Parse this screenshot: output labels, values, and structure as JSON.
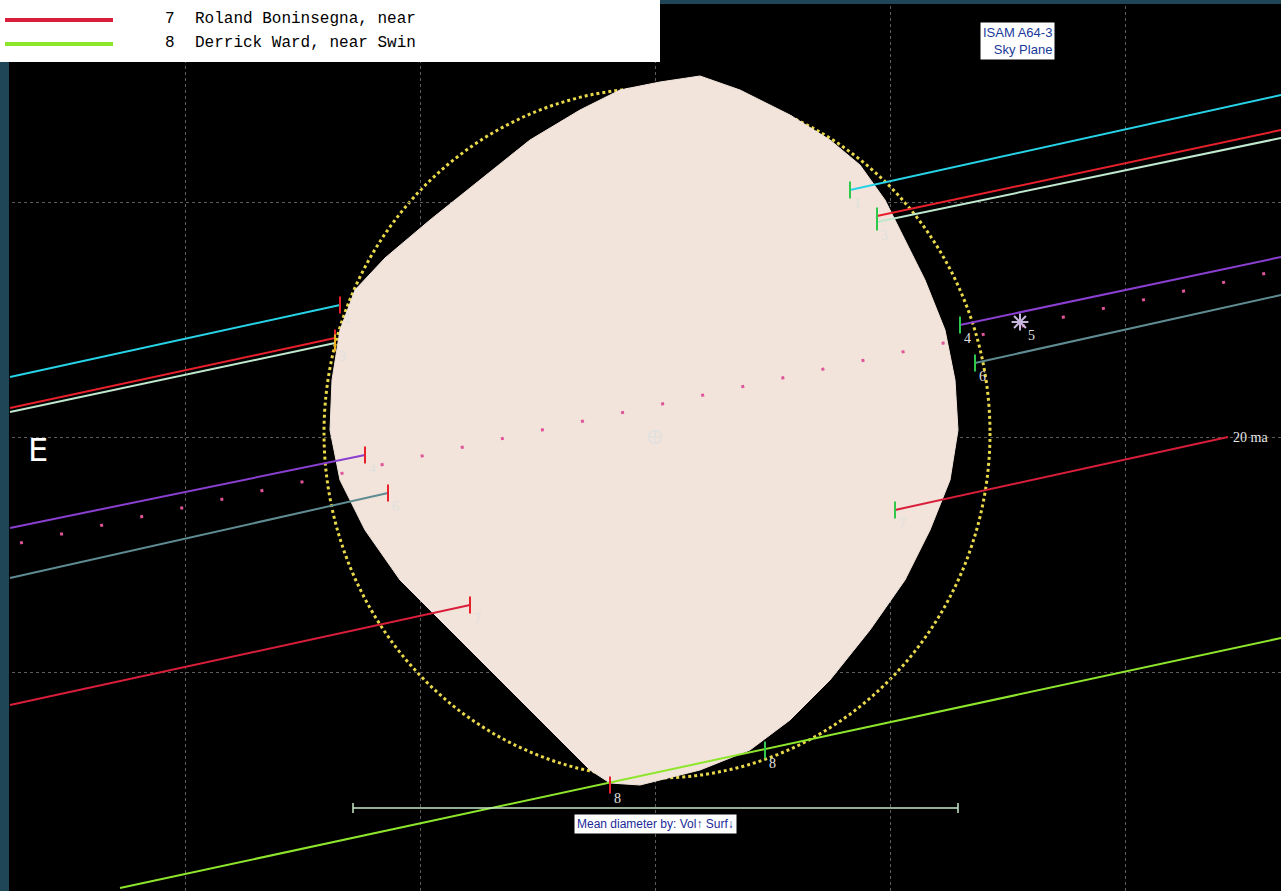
{
  "chart_data": {
    "type": "scatter",
    "xlim": [
      -65.5,
      62.6
    ],
    "ylim": [
      -45.4,
      43.7
    ],
    "xticks": [
      -47,
      -23.5,
      0,
      23.5,
      47
    ],
    "yticks": [
      -23.5,
      0,
      23.5
    ],
    "grid": true,
    "tick_labels": false,
    "legend": "top-left",
    "title_box": [
      "ISAM A64-3",
      "Sky Plane"
    ],
    "direction_label": "E",
    "annotations": [
      {
        "text": "20 ma",
        "x": 57.5,
        "y": 0.0
      }
    ],
    "center": {
      "x": 0,
      "y": 0
    },
    "profile": {
      "color": "#f2e4da",
      "x": [
        0.5,
        4.5,
        8.5,
        13.5,
        17.5,
        20.5,
        23.0,
        25.0,
        27.0,
        29.0,
        30.0,
        30.3,
        29.5,
        27.5,
        25.0,
        21.5,
        17.5,
        13.5,
        9.5,
        4.5,
        -1.5,
        -4.5,
        -6.5,
        -9.5,
        -13.5,
        -17.5,
        -21.5,
        -25.5,
        -29.0,
        -31.5,
        -32.5,
        -32.3,
        -31.5,
        -30.0,
        -27.0,
        -22.5,
        -17.5,
        -12.5,
        -7.5,
        -3.5
      ],
      "y": [
        35.5,
        36.1,
        34.7,
        32.2,
        29.7,
        27.2,
        23.7,
        19.7,
        15.7,
        10.7,
        5.7,
        0.7,
        -4.3,
        -9.3,
        -14.3,
        -19.3,
        -24.3,
        -28.3,
        -31.3,
        -33.3,
        -34.8,
        -34.6,
        -33.3,
        -30.3,
        -26.3,
        -22.3,
        -18.3,
        -14.3,
        -9.3,
        -4.3,
        0.7,
        5.7,
        10.7,
        14.7,
        17.9,
        21.7,
        25.7,
        29.7,
        32.7,
        34.7
      ]
    },
    "limb_fit": {
      "x": [
        -33.1,
        33.5
      ],
      "y": [
        -34.1,
        34.9
      ],
      "color": "#e8d84a",
      "line_style": "dotted"
    },
    "mean_diameter": {
      "x": [
        -30.2,
        30.3
      ],
      "y": -37.1,
      "color": "#c8e8c8",
      "label": "Mean diameter by: Vol↑ Surf↓"
    },
    "series": [
      {
        "label": "1",
        "color": "#27d3e6",
        "line_style": "solid",
        "marker": "line",
        "x": [
          -64.5,
          -31.5,
          null,
          19.5,
          62.6
        ],
        "y": [
          6.0,
          13.2,
          null,
          24.7,
          34.2
        ],
        "events": [
          {
            "x": -31.5,
            "y": 13.2,
            "color": "#e8202c"
          },
          {
            "x": 19.5,
            "y": 24.7,
            "color": "#2ec84a"
          }
        ]
      },
      {
        "color": "#e8202c",
        "line_style": "solid",
        "marker": "line",
        "x": [
          -64.5,
          -32.0,
          null,
          22.2,
          62.6
        ],
        "y": [
          2.9,
          9.9,
          null,
          22.1,
          30.7
        ],
        "events": [
          {
            "x": -32.0,
            "y": 9.9,
            "color": "#e8202c"
          },
          {
            "x": 22.2,
            "y": 22.1,
            "color": "#2ec84a"
          }
        ]
      },
      {
        "label": "3",
        "color": "#bfe8cf",
        "line_style": "solid",
        "marker": "line",
        "x": [
          -64.5,
          -32.0,
          null,
          22.2,
          62.6
        ],
        "y": [
          2.5,
          9.4,
          null,
          21.5,
          29.9
        ],
        "events": [
          {
            "x": -32.0,
            "y": 9.4,
            "color": "#f0b020"
          },
          {
            "x": 22.2,
            "y": 21.5,
            "color": "#2ec84a"
          }
        ]
      },
      {
        "label": "4",
        "color": "#8a3fd0",
        "line_style": "solid",
        "marker": "line",
        "x": [
          -64.5,
          -29.0,
          null,
          30.5,
          62.6
        ],
        "y": [
          -9.1,
          -1.8,
          null,
          11.2,
          18.0
        ],
        "events": [
          {
            "x": -29.0,
            "y": -1.8,
            "color": "#e8202c"
          },
          {
            "x": 30.5,
            "y": 11.2,
            "color": "#2ec84a"
          }
        ]
      },
      {
        "label": "5",
        "color": "#e0559a",
        "line_style": "dotted",
        "marker": "star",
        "x": [
          -63.5,
          62.6
        ],
        "y": [
          -10.6,
          16.7
        ],
        "events": [
          {
            "x": 36.5,
            "y": 11.5,
            "color": "#c8b8e0"
          }
        ]
      },
      {
        "label": "6",
        "color": "#5e8c92",
        "line_style": "solid",
        "marker": "line",
        "x": [
          -64.5,
          -26.7,
          null,
          32.0,
          62.6
        ],
        "y": [
          -14.1,
          -5.6,
          null,
          7.4,
          14.2
        ],
        "events": [
          {
            "x": -26.7,
            "y": -5.6,
            "color": "#e8202c"
          },
          {
            "x": 32.0,
            "y": 7.4,
            "color": "#2ec84a"
          }
        ]
      },
      {
        "label": "7",
        "name": "Roland Boninsegna, near",
        "color": "#d81e3a",
        "line_style": "solid",
        "marker": "line",
        "x": [
          -64.5,
          -18.5,
          null,
          24.0,
          57.3
        ],
        "y": [
          -26.8,
          -16.8,
          null,
          -7.3,
          0.0
        ],
        "events": [
          {
            "x": -18.5,
            "y": -16.8,
            "color": "#e8202c"
          },
          {
            "x": 24.0,
            "y": -7.3,
            "color": "#2ec84a"
          }
        ]
      },
      {
        "label": "8",
        "name": "Derrick Ward, near Swin",
        "color": "#8ee62c",
        "line_style": "solid",
        "marker": "line",
        "x": [
          -53.5,
          62.6
        ],
        "y": [
          -45.1,
          -20.1
        ],
        "events": [
          {
            "x": -4.5,
            "y": -34.8,
            "color": "#e8202c"
          },
          {
            "x": 11.0,
            "y": -31.3,
            "color": "#2ec84a"
          }
        ]
      }
    ]
  }
}
